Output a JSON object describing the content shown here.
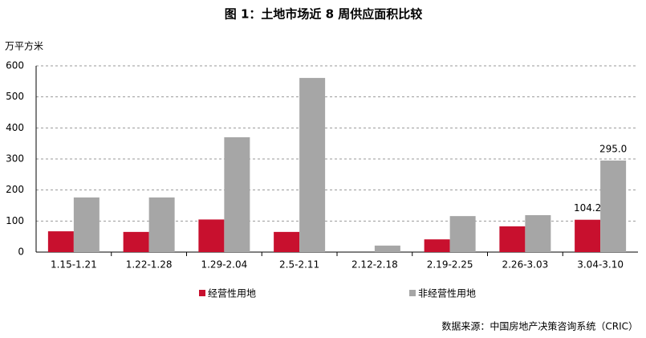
{
  "chart_data": {
    "type": "bar",
    "title": "图 1：土地市场近 8 周供应面积比较",
    "y_label": "万平方米",
    "source": "数据来源：中国房地产决策咨询系统（CRIC）",
    "categories": [
      "1.15-1.21",
      "1.22-1.28",
      "1.29-2.04",
      "2.5-2.11",
      "2.12-2.18",
      "2.19-2.25",
      "2.26-3.03",
      "3.04-3.10"
    ],
    "series": [
      {
        "name": "经营性用地",
        "color": "#c8102e",
        "values": [
          67,
          65,
          105,
          65,
          0,
          41,
          83,
          104.2
        ],
        "value_labels": [
          null,
          null,
          null,
          null,
          null,
          null,
          null,
          "104.2"
        ]
      },
      {
        "name": "非经营性用地",
        "color": "#a6a6a6",
        "values": [
          176,
          176,
          370,
          561,
          21,
          116,
          119,
          295.0
        ],
        "value_labels": [
          null,
          null,
          null,
          null,
          null,
          null,
          null,
          "295.0"
        ]
      }
    ],
    "ylim": [
      0,
      600
    ],
    "yticks": [
      0,
      100,
      200,
      300,
      400,
      500,
      600
    ],
    "grid": true
  }
}
